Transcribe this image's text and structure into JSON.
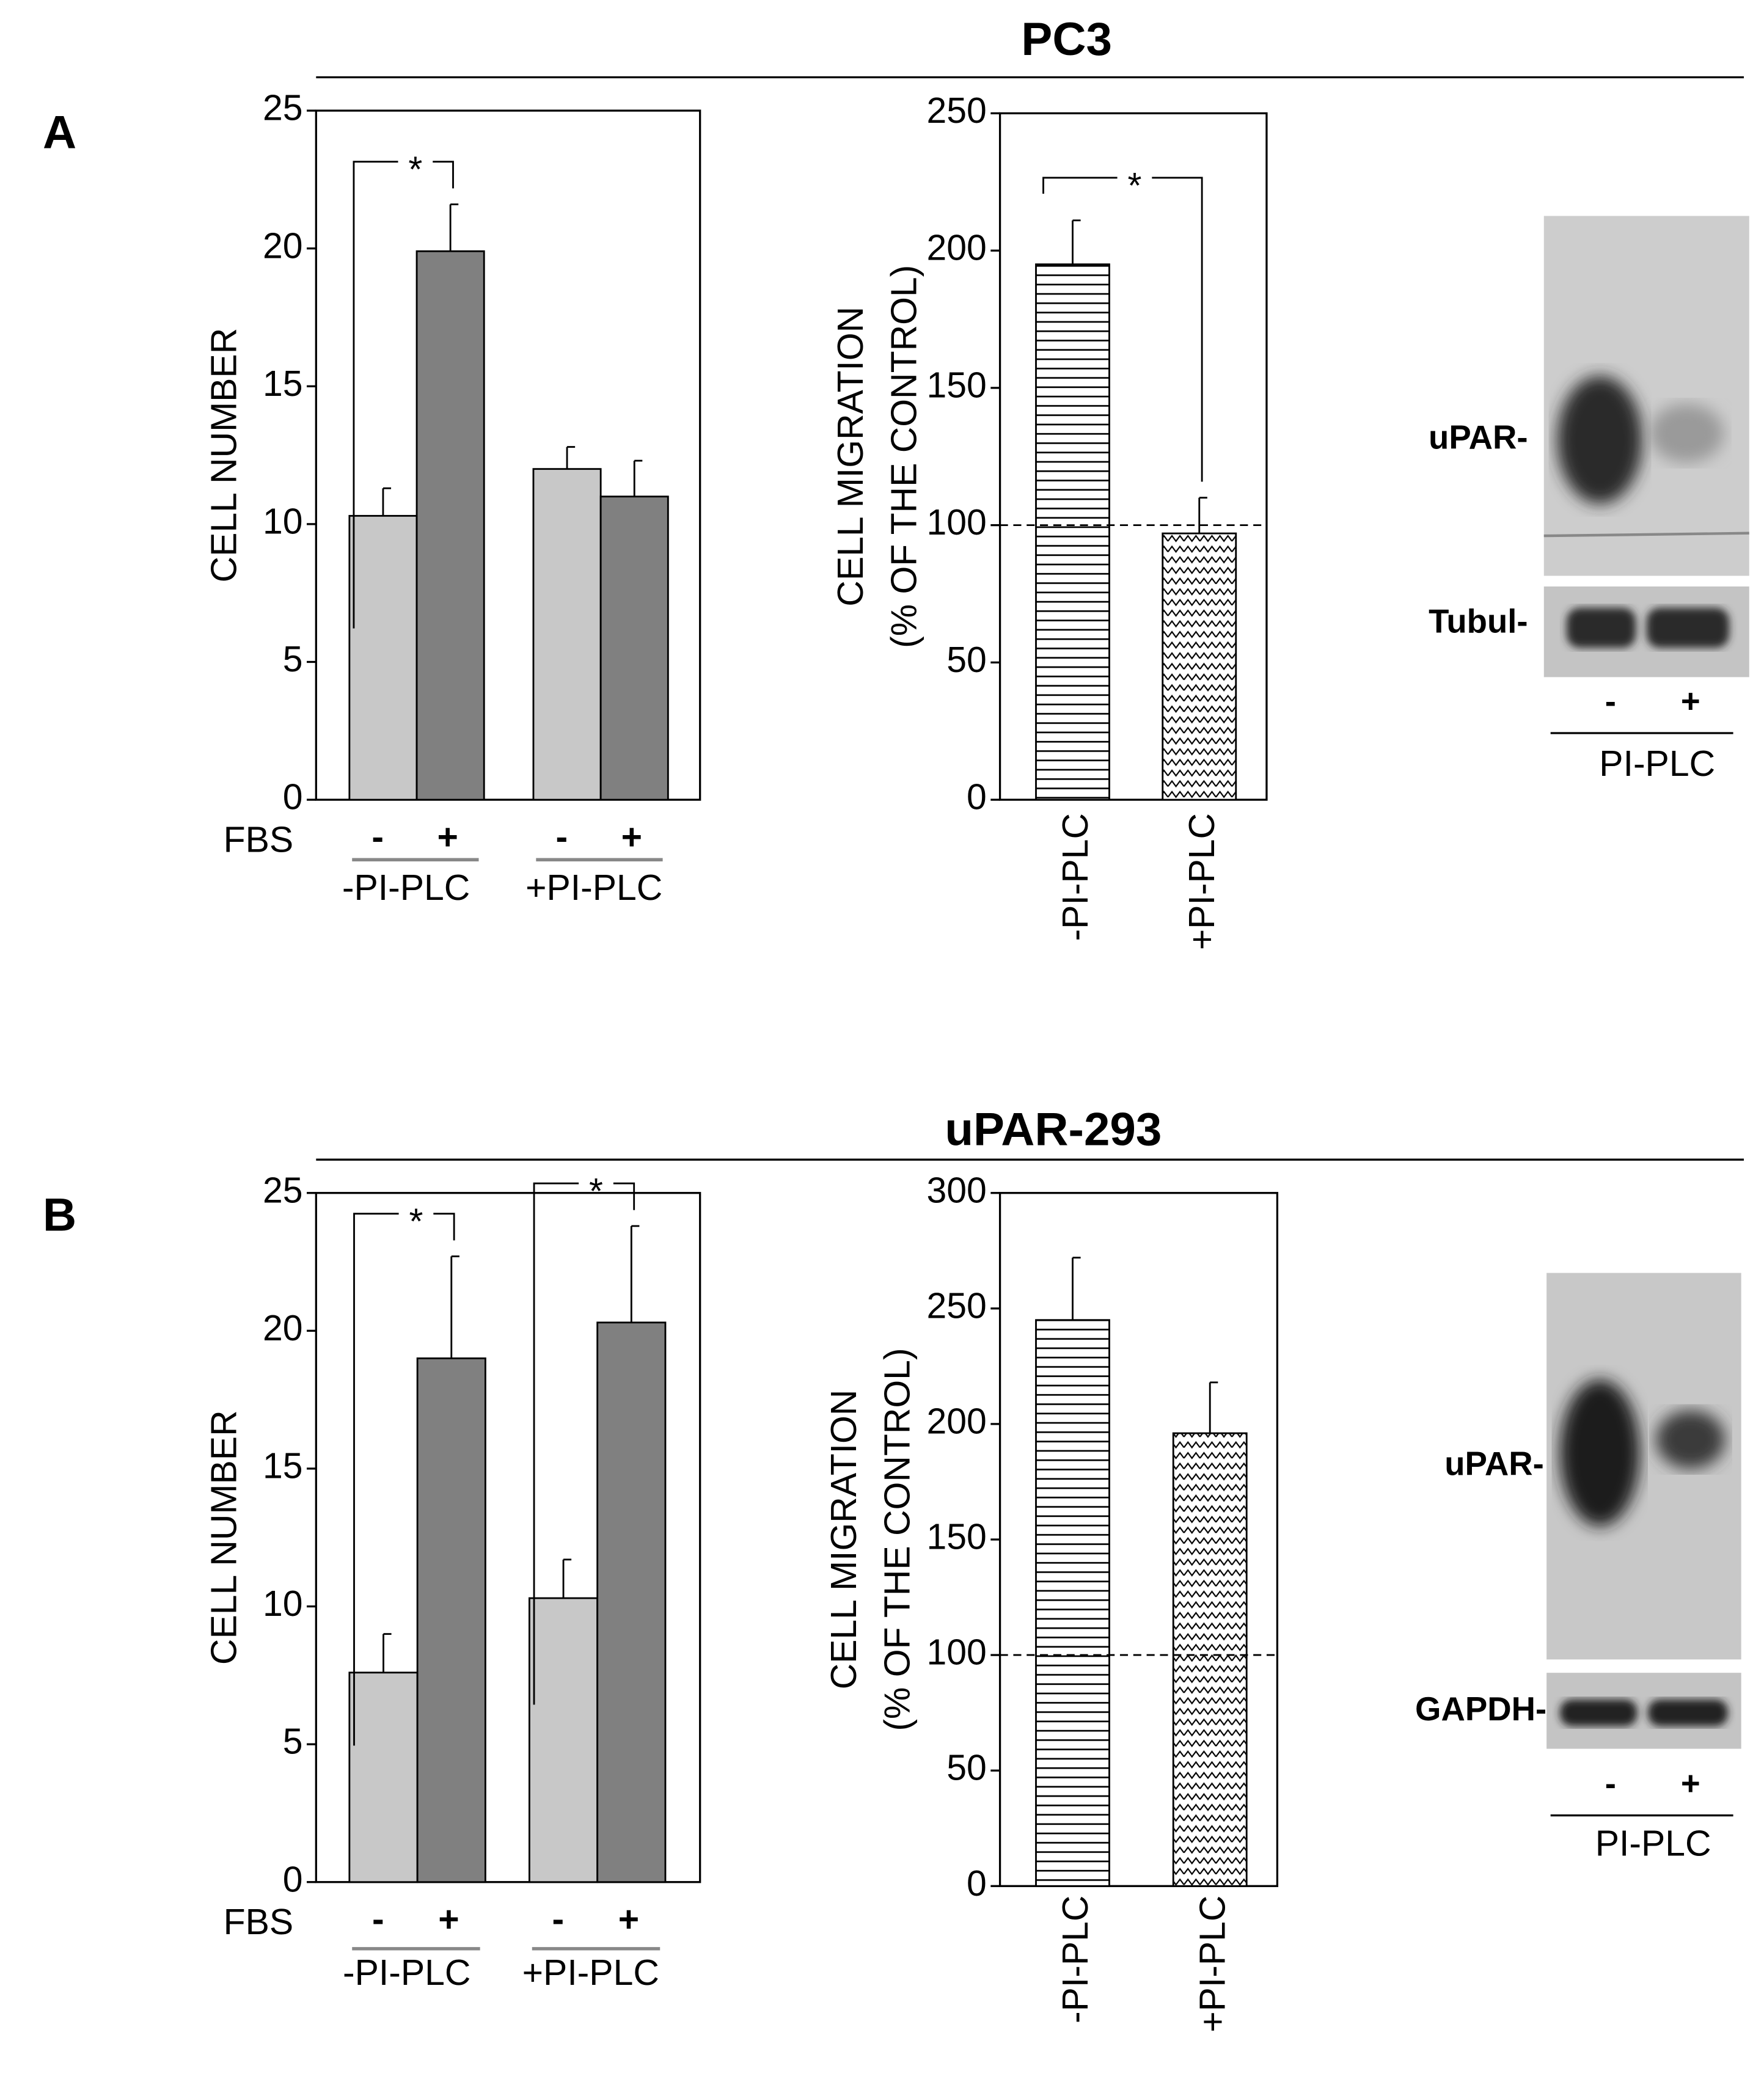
{
  "panels": [
    {
      "label": "A",
      "title": "PC3"
    },
    {
      "label": "B",
      "title": "uPAR-293"
    }
  ],
  "blots": [
    {
      "bands": [
        "uPAR-",
        "Tubul-"
      ],
      "lanes": [
        "-",
        "+"
      ],
      "treatment": "PI-PLC"
    },
    {
      "bands": [
        "uPAR-",
        "GAPDH-"
      ],
      "lanes": [
        "-",
        "+"
      ],
      "treatment": "PI-PLC"
    }
  ],
  "chart_data": [
    {
      "type": "bar",
      "y_label": "CELL NUMBER",
      "x_label": "FBS",
      "categories": [
        "-PI-PLC",
        "+PI-PLC"
      ],
      "series": [
        {
          "name": "-",
          "color": "#c8c8c8",
          "values": [
            10.3,
            12.0
          ],
          "errors": [
            1.0,
            0.8
          ]
        },
        {
          "name": "+",
          "color": "#808080",
          "values": [
            19.9,
            11.0
          ],
          "errors": [
            1.7,
            1.3
          ]
        }
      ],
      "ylim": [
        0,
        25
      ],
      "yticks": [
        0,
        5,
        10,
        15,
        20,
        25
      ],
      "annotations": [
        "*"
      ]
    },
    {
      "type": "bar",
      "y_label": [
        "CELL MIGRATION",
        "(% OF THE CONTROL)"
      ],
      "categories": [
        "-PI-PLC",
        "+PI-PLC"
      ],
      "values": [
        195,
        97
      ],
      "errors": [
        16,
        13
      ],
      "patterns": [
        "horizontal",
        "zigzag"
      ],
      "reference_line": 100,
      "ylim": [
        0,
        250
      ],
      "yticks": [
        0,
        50,
        100,
        150,
        200,
        250
      ],
      "annotations": [
        "*"
      ]
    },
    {
      "type": "bar",
      "y_label": "CELL NUMBER",
      "x_label": "FBS",
      "categories": [
        "-PI-PLC",
        "+PI-PLC"
      ],
      "series": [
        {
          "name": "-",
          "color": "#c8c8c8",
          "values": [
            7.6,
            10.3
          ],
          "errors": [
            1.4,
            1.4
          ]
        },
        {
          "name": "+",
          "color": "#808080",
          "values": [
            19.0,
            20.3
          ],
          "errors": [
            3.7,
            3.5
          ]
        }
      ],
      "ylim": [
        0,
        25
      ],
      "yticks": [
        0,
        5,
        10,
        15,
        20,
        25
      ],
      "annotations": [
        "*",
        "*"
      ]
    },
    {
      "type": "bar",
      "y_label": [
        "CELL MIGRATION",
        "(% OF THE CONTROL)"
      ],
      "categories": [
        "-PI-PLC",
        "+PI-PLC"
      ],
      "values": [
        245,
        196
      ],
      "errors": [
        27,
        22
      ],
      "patterns": [
        "horizontal",
        "zigzag"
      ],
      "reference_line": 100,
      "ylim": [
        0,
        300
      ],
      "yticks": [
        0,
        50,
        100,
        150,
        200,
        250,
        300
      ]
    }
  ]
}
